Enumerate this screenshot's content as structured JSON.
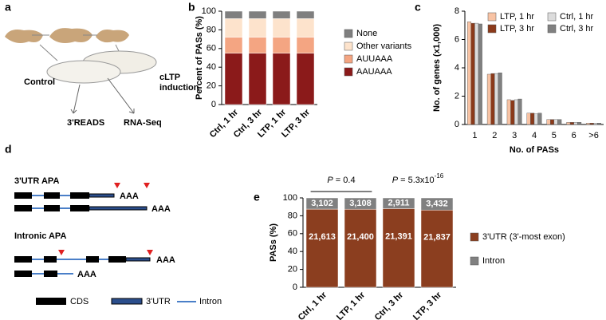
{
  "panel_labels": [
    "a",
    "b",
    "c",
    "d",
    "e"
  ],
  "diagram_a": {
    "control": "Control",
    "induction": [
      "cLTP",
      "induction"
    ],
    "methods": [
      "3'READS",
      "RNA-Seq"
    ]
  },
  "diagram_d": {
    "utr_apa": "3'UTR APA",
    "intronic_apa": "Intronic APA",
    "poly_a": "AAA",
    "legend": [
      "CDS",
      "3'UTR",
      "Intron"
    ]
  },
  "chart_data": [
    {
      "type": "bar",
      "stacked": true,
      "y_label": "Percent of PASs (%)",
      "categories": [
        "Ctrl, 1 hr",
        "Ctrl, 3 hr",
        "LTP, 1 hr",
        "LTP, 3 hr"
      ],
      "series": [
        {
          "name": "AAUAAA",
          "color": "#8b1a1a",
          "values": [
            55,
            55,
            55,
            55
          ]
        },
        {
          "name": "AUUAAA",
          "color": "#f4a582",
          "values": [
            17,
            17,
            17,
            17
          ]
        },
        {
          "name": "Other variants",
          "color": "#fde3cc",
          "values": [
            20,
            20,
            20,
            20
          ]
        },
        {
          "name": "None",
          "color": "#7f7f7f",
          "values": [
            8,
            8,
            8,
            8
          ]
        }
      ],
      "ylim": [
        0,
        100
      ],
      "yticks": [
        0,
        20,
        40,
        60,
        80,
        100
      ]
    },
    {
      "type": "bar",
      "stacked": false,
      "x_label": "No. of PASs",
      "y_label": "No. of genes (x1,000)",
      "categories": [
        "1",
        "2",
        "3",
        "4",
        "5",
        "6",
        ">6"
      ],
      "series": [
        {
          "name": "LTP, 1 hr",
          "color": "#f8c3a4",
          "values": [
            7.25,
            3.55,
            1.75,
            0.8,
            0.35,
            0.15,
            0.1
          ]
        },
        {
          "name": "LTP, 3 hr",
          "color": "#8b3a1a",
          "values": [
            7.15,
            3.6,
            1.7,
            0.8,
            0.35,
            0.15,
            0.1
          ]
        },
        {
          "name": "Ctrl, 1 hr",
          "color": "#dcdcdc",
          "values": [
            7.15,
            3.6,
            1.75,
            0.75,
            0.35,
            0.15,
            0.1
          ]
        },
        {
          "name": "Ctrl, 3 hr",
          "color": "#808080",
          "values": [
            7.1,
            3.65,
            1.8,
            0.8,
            0.35,
            0.15,
            0.1
          ]
        }
      ],
      "ylim": [
        0,
        8
      ],
      "yticks": [
        0,
        2,
        4,
        6,
        8
      ]
    },
    {
      "type": "bar",
      "stacked": true,
      "y_label": "PASs (%)",
      "categories": [
        "Ctrl, 1 hr",
        "LTP, 1 hr",
        "Ctrl, 3 hr",
        "LTP, 3 hr"
      ],
      "series": [
        {
          "name": "3'UTR (3'-most exon)",
          "color": "#8b3e1f",
          "values": [
            87.45,
            87.32,
            88.02,
            86.42
          ],
          "count_labels": [
            "21,613",
            "21,400",
            "21,391",
            "21,837"
          ]
        },
        {
          "name": "Intron",
          "color": "#808080",
          "values": [
            12.55,
            12.68,
            11.98,
            13.58
          ],
          "count_labels": [
            "3,102",
            "3,108",
            "2,911",
            "3,432"
          ]
        }
      ],
      "ylim": [
        0,
        100
      ],
      "yticks": [
        0,
        20,
        40,
        60,
        80,
        100
      ],
      "annotations": [
        {
          "symbol": "P",
          "text": " = 0.4"
        },
        {
          "symbol": "P",
          "text": " = 5.3x10",
          "superscript": "-16"
        }
      ]
    }
  ]
}
